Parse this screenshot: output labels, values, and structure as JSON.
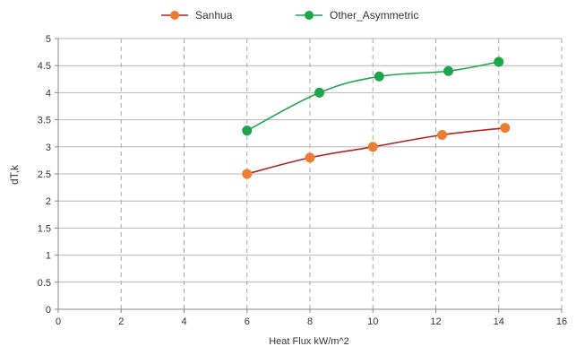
{
  "chart_data": {
    "type": "scatter",
    "title": "",
    "xlabel": "Heat Flux kW/m^2",
    "ylabel": "dT,k",
    "xlim": [
      0,
      16
    ],
    "ylim": [
      0,
      5
    ],
    "x_ticks": [
      0,
      2,
      4,
      6,
      8,
      10,
      12,
      14,
      16
    ],
    "y_ticks": [
      0,
      0.5,
      1,
      1.5,
      2,
      2.5,
      3,
      3.5,
      4,
      4.5,
      5
    ],
    "x_tick_labels": [
      "0",
      "2",
      "4",
      "6",
      "8",
      "10",
      "12",
      "14",
      "16"
    ],
    "y_tick_labels": [
      "0",
      "0.5",
      "1",
      "1.5",
      "2",
      "2.5",
      "3",
      "3.5",
      "4",
      "4.5",
      "5"
    ],
    "grid": {
      "vertical": "dashed",
      "horizontal": "solid"
    },
    "legend_position": "top-center",
    "series": [
      {
        "name": "Sanhua",
        "line_color": "#b22222",
        "marker_color": "#ed7d31",
        "x": [
          6.0,
          8.0,
          10.0,
          12.2,
          14.2
        ],
        "y": [
          2.5,
          2.8,
          3.0,
          3.22,
          3.35
        ]
      },
      {
        "name": "Other_Asymmetric",
        "line_color": "#1ea54c",
        "marker_color": "#1ea54c",
        "x": [
          6.0,
          8.3,
          10.2,
          12.4,
          14.0
        ],
        "y": [
          3.3,
          4.0,
          4.3,
          4.4,
          4.57
        ]
      }
    ]
  }
}
